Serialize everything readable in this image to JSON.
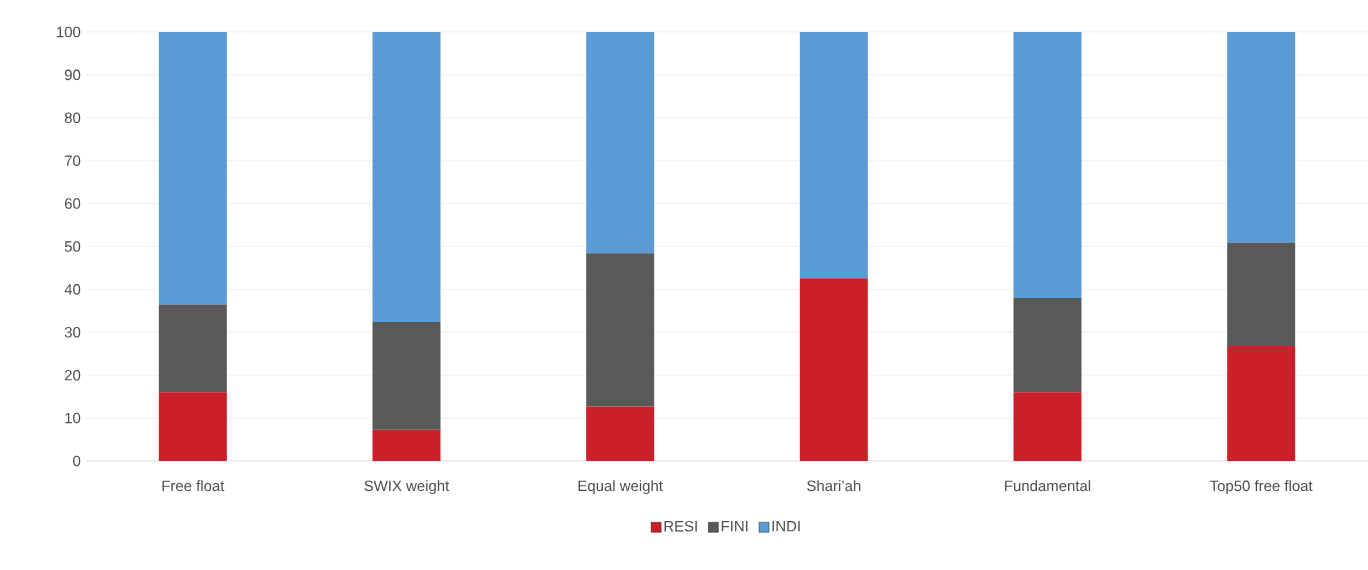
{
  "chart_data": {
    "type": "bar",
    "stacked": true,
    "categories": [
      "Free float",
      "SWIX weight",
      "Equal weight",
      "Shari’ah",
      "Fundamental",
      "Top50 free float"
    ],
    "series": [
      {
        "name": "RESI",
        "color": "#c9202a",
        "values": [
          16,
          7.3,
          12.7,
          42.6,
          16,
          26.8
        ]
      },
      {
        "name": "FINI",
        "color": "#595959",
        "values": [
          20.5,
          25.1,
          35.7,
          0,
          22,
          24.1
        ]
      },
      {
        "name": "INDI",
        "color": "#5b9bd5",
        "values": [
          63.5,
          67.6,
          51.6,
          57.4,
          62,
          49.1
        ]
      }
    ],
    "ylim": [
      0,
      100
    ],
    "yticks": [
      0,
      10,
      20,
      30,
      40,
      50,
      60,
      70,
      80,
      90,
      100
    ],
    "grid": "y",
    "legend": "bottom"
  }
}
